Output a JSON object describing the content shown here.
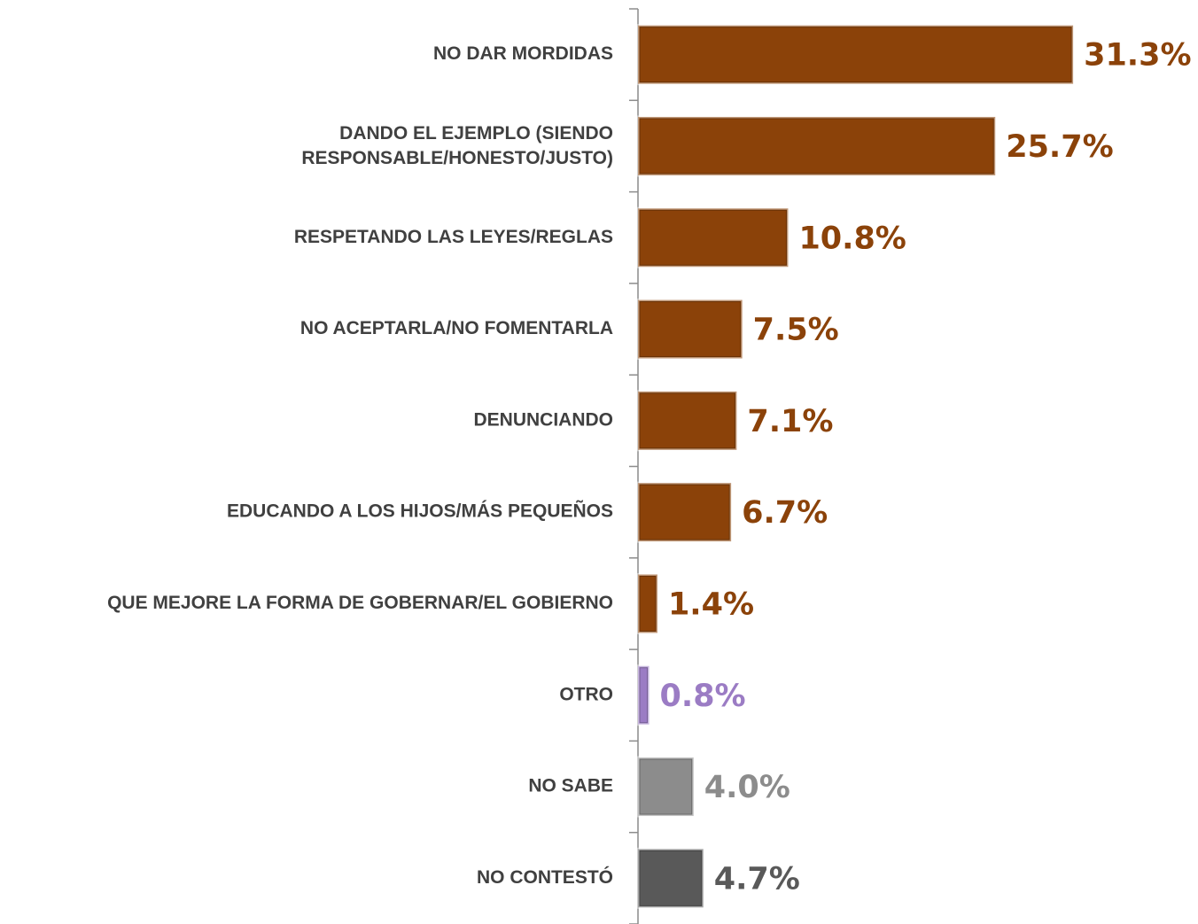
{
  "chart_data": {
    "type": "bar",
    "orientation": "horizontal",
    "categories": [
      "NO DAR MORDIDAS",
      "DANDO EL EJEMPLO (SIENDO\nRESPONSABLE/HONESTO/JUSTO)",
      "RESPETANDO LAS LEYES/REGLAS",
      "NO ACEPTARLA/NO FOMENTARLA",
      "DENUNCIANDO",
      "EDUCANDO A LOS HIJOS/MÁS PEQUEÑOS",
      "QUE MEJORE LA FORMA DE GOBERNAR/EL GOBIERNO",
      "OTRO",
      "NO SABE",
      "NO CONTESTÓ"
    ],
    "values": [
      31.3,
      25.7,
      10.8,
      7.5,
      7.1,
      6.7,
      1.4,
      0.8,
      4.0,
      4.7
    ],
    "value_labels": [
      "31.3%",
      "25.7%",
      "10.8%",
      "7.5%",
      "7.1%",
      "6.7%",
      "1.4%",
      "0.8%",
      "4.0%",
      "4.7%"
    ],
    "colors": [
      "#8B4209",
      "#8B4209",
      "#8B4209",
      "#8B4209",
      "#8B4209",
      "#8B4209",
      "#8B4209",
      "#9B7CC4",
      "#8C8C8C",
      "#595959"
    ]
  }
}
